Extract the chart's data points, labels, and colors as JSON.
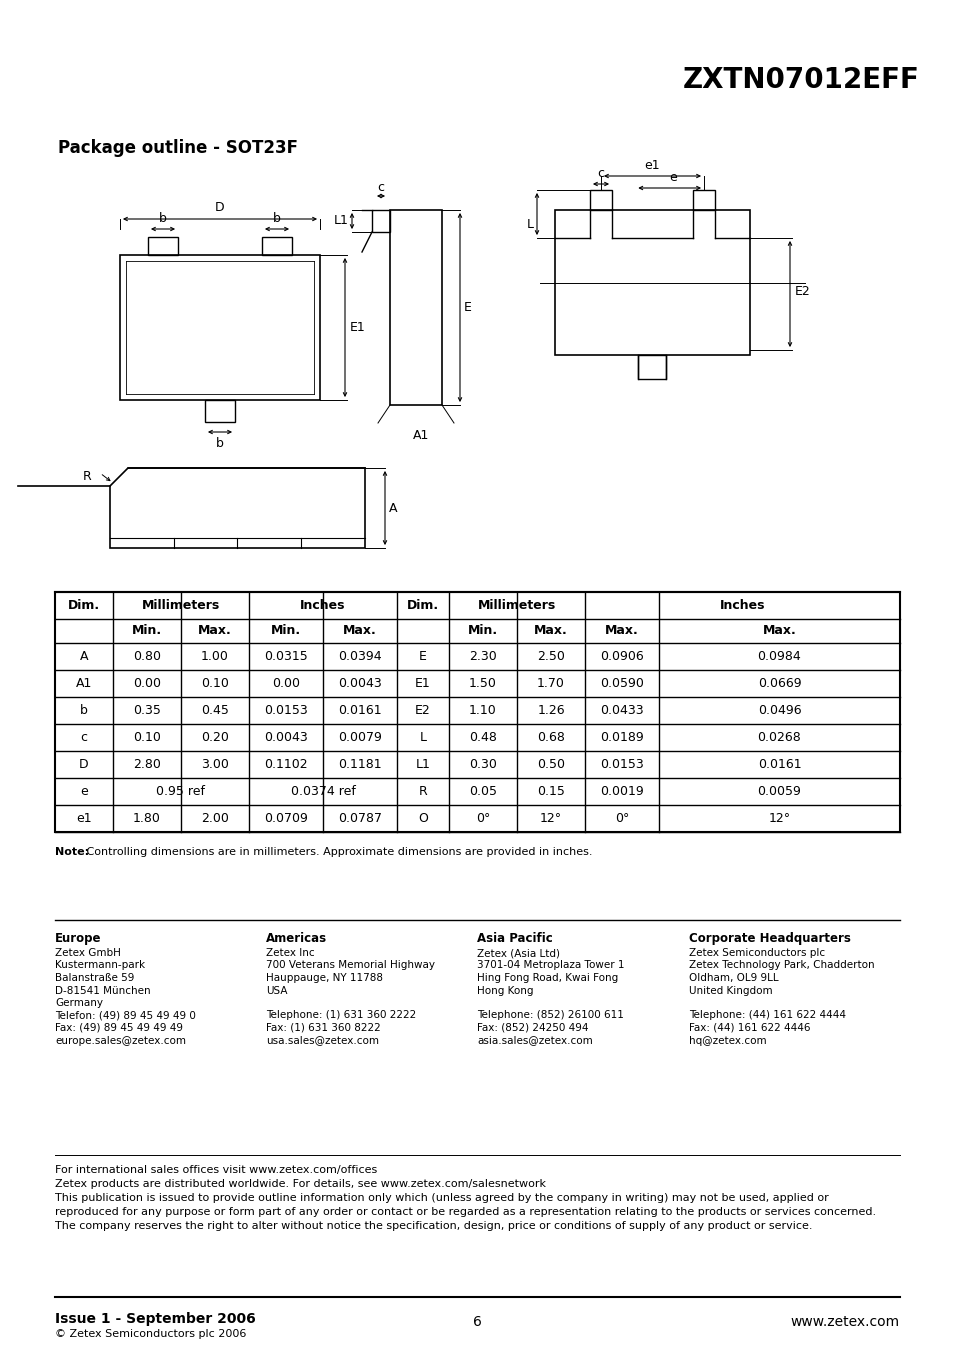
{
  "title": "ZXTN07012EFF",
  "subtitle": "Package outline - SOT23F",
  "bg_color": "#ffffff",
  "title_fontsize": 22,
  "subtitle_fontsize": 13,
  "table_data": [
    [
      "A",
      "0.80",
      "1.00",
      "0.0315",
      "0.0394",
      "E",
      "2.30",
      "2.50",
      "0.0906",
      "0.0984"
    ],
    [
      "A1",
      "0.00",
      "0.10",
      "0.00",
      "0.0043",
      "E1",
      "1.50",
      "1.70",
      "0.0590",
      "0.0669"
    ],
    [
      "b",
      "0.35",
      "0.45",
      "0.0153",
      "0.0161",
      "E2",
      "1.10",
      "1.26",
      "0.0433",
      "0.0496"
    ],
    [
      "c",
      "0.10",
      "0.20",
      "0.0043",
      "0.0079",
      "L",
      "0.48",
      "0.68",
      "0.0189",
      "0.0268"
    ],
    [
      "D",
      "2.80",
      "3.00",
      "0.1102",
      "0.1181",
      "L1",
      "0.30",
      "0.50",
      "0.0153",
      "0.0161"
    ],
    [
      "e",
      "0.95 ref",
      "",
      "0.0374 ref",
      "",
      "R",
      "0.05",
      "0.15",
      "0.0019",
      "0.0059"
    ],
    [
      "e1",
      "1.80",
      "2.00",
      "0.0709",
      "0.0787",
      "O",
      "0°",
      "12°",
      "0°",
      "12°"
    ]
  ],
  "note_bold": "Note:",
  "note_rest": " Controlling dimensions are in millimeters. Approximate dimensions are provided in inches.",
  "footer_europe_title": "Europe",
  "footer_europe_lines": [
    "Zetex GmbH",
    "Kustermann-park",
    "Balanstraße 59",
    "D-81541 München",
    "Germany",
    "Telefon: (49) 89 45 49 49 0",
    "Fax: (49) 89 45 49 49 49",
    "europe.sales@zetex.com"
  ],
  "footer_americas_title": "Americas",
  "footer_americas_lines": [
    "Zetex Inc",
    "700 Veterans Memorial Highway",
    "Hauppauge, NY 11788",
    "USA",
    "",
    "Telephone: (1) 631 360 2222",
    "Fax: (1) 631 360 8222",
    "usa.sales@zetex.com"
  ],
  "footer_asia_title": "Asia Pacific",
  "footer_asia_lines": [
    "Zetex (Asia Ltd)",
    "3701-04 Metroplaza Tower 1",
    "Hing Fong Road, Kwai Fong",
    "Hong Kong",
    "",
    "Telephone: (852) 26100 611",
    "Fax: (852) 24250 494",
    "asia.sales@zetex.com"
  ],
  "footer_corp_title": "Corporate Headquarters",
  "footer_corp_lines": [
    "Zetex Semiconductors plc",
    "Zetex Technology Park, Chadderton",
    "Oldham, OL9 9LL",
    "United Kingdom",
    "",
    "Telephone: (44) 161 622 4444",
    "Fax: (44) 161 622 4446",
    "hq@zetex.com"
  ],
  "bottom_line1a": "For international sales offices visit ",
  "bottom_line1b": "www.zetex.com/offices",
  "bottom_line2a": "Zetex products are distributed worldwide. For details, see ",
  "bottom_line2b": "www.zetex.com/salesnetwork",
  "bottom_line3": "This publication is issued to provide outline information only which (unless agreed by the company in writing) may not be used, applied or",
  "bottom_line4": "reproduced for any purpose or form part of any order or contact or be regarded as a representation relating to the products or services concerned.",
  "bottom_line5": "The company reserves the right to alter without notice the specification, design, price or conditions of supply of any product or service.",
  "issue_text": "Issue 1 - September 2006",
  "copyright_text": "© Zetex Semiconductors plc 2006",
  "page_number": "6",
  "website": "www.zetex.com"
}
